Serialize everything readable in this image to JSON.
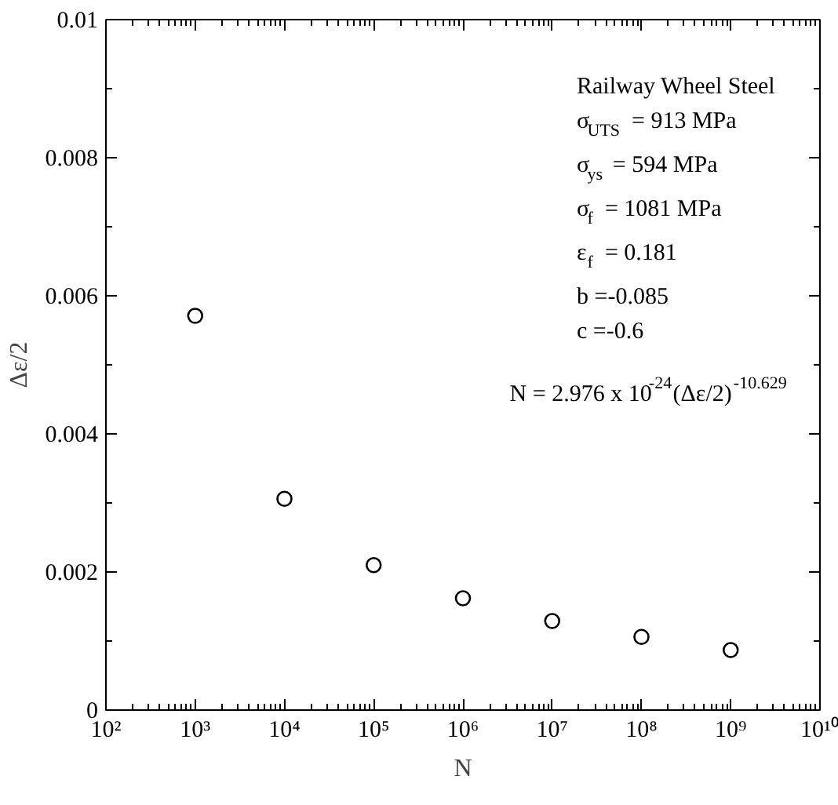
{
  "chart_data": {
    "type": "scatter",
    "xlabel": "N",
    "ylabel": "Δε/2",
    "log": "x",
    "grid": false,
    "marker": "circle",
    "x": [
      1000,
      10000,
      100000,
      1000000,
      10000000,
      100000000,
      1000000000
    ],
    "series": [
      {
        "color": "#000000",
        "values": [
          0.00571,
          0.00306,
          0.0021,
          0.00162,
          0.00129,
          0.00106,
          0.00087
        ]
      }
    ],
    "xlim": [
      100,
      10000000000
    ],
    "xticks": [
      {
        "value": 100,
        "label": "10²"
      },
      {
        "value": 1000,
        "label": "10³"
      },
      {
        "value": 10000,
        "label": "10⁴"
      },
      {
        "value": 100000,
        "label": "10⁵"
      },
      {
        "value": 1000000,
        "label": "10⁶"
      },
      {
        "value": 10000000,
        "label": "10⁷"
      },
      {
        "value": 100000000,
        "label": "10⁸"
      },
      {
        "value": 1000000000,
        "label": "10⁹"
      },
      {
        "value": 10000000000,
        "label": "10¹⁰"
      }
    ],
    "ylim": [
      0,
      0.01
    ],
    "yticks": [
      0,
      0.002,
      0.004,
      0.006,
      0.008,
      0.01
    ],
    "annotations": [
      "Railway Wheel Steel",
      "σ$_{UTS}$ = 913 MPa",
      "σ$_{ys}$ = 594 MPa",
      "σ$_{f}$ = 1081 MPa",
      "ε$_{f}$ = 0.181",
      "b =-0.085",
      "c =-0.6",
      "N = 2.976 x 10$^{-24}$(Δε/2)$^{-10.629}$"
    ]
  }
}
